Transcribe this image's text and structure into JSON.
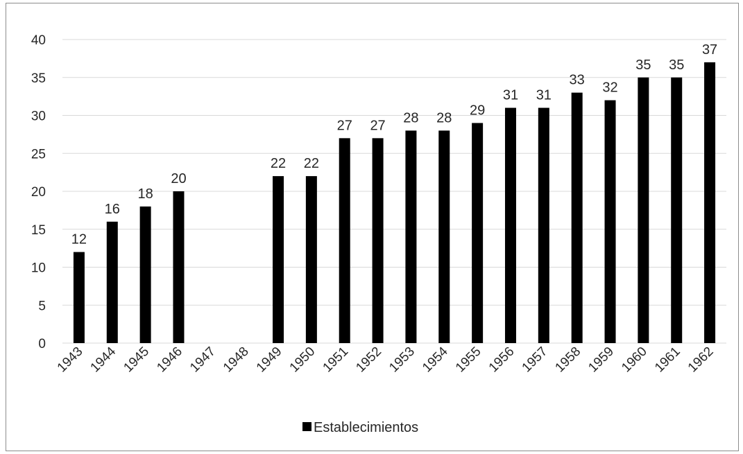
{
  "chart_data": {
    "type": "bar",
    "categories": [
      "1943",
      "1944",
      "1945",
      "1946",
      "1947",
      "1948",
      "1949",
      "1950",
      "1951",
      "1952",
      "1953",
      "1954",
      "1955",
      "1956",
      "1957",
      "1958",
      "1959",
      "1960",
      "1961",
      "1962"
    ],
    "series": [
      {
        "name": "Establecimientos",
        "values": [
          12,
          16,
          18,
          20,
          null,
          null,
          22,
          22,
          27,
          27,
          28,
          28,
          29,
          31,
          31,
          33,
          32,
          35,
          35,
          37
        ]
      }
    ],
    "title": "",
    "xlabel": "",
    "ylabel": "",
    "ylim": [
      0,
      40
    ],
    "yticks": [
      0,
      5,
      10,
      15,
      20,
      25,
      30,
      35,
      40
    ],
    "grid": true,
    "legend": "bottom",
    "bar_color": "#000000",
    "grid_color": "#d9d9d9"
  }
}
